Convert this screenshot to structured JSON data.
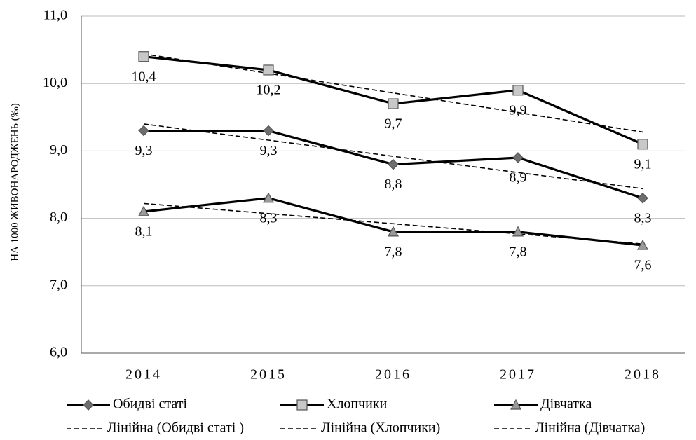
{
  "chart_data": {
    "type": "line",
    "ylabel": "НА 1000 ЖИВОНАРОДЖЕНЬ (‰)",
    "categories": [
      "2014",
      "2015",
      "2016",
      "2017",
      "2018"
    ],
    "ylim": [
      6,
      11
    ],
    "yticks": [
      {
        "value": 6,
        "label": "6,0"
      },
      {
        "value": 7,
        "label": "7,0"
      },
      {
        "value": 8,
        "label": "8,0"
      },
      {
        "value": 9,
        "label": "9,0"
      },
      {
        "value": 10,
        "label": "10,0"
      },
      {
        "value": 11,
        "label": "11,0"
      }
    ],
    "grid": true,
    "trendline": "linear",
    "series": [
      {
        "name": "Обидві статі",
        "trend_name": "Лінійна (Обидві статі )",
        "color": "#000000",
        "marker": "diamond",
        "marker_fill": "#6e6e6e",
        "values": [
          9.3,
          9.3,
          8.8,
          8.9,
          8.3
        ],
        "value_labels": [
          "9,3",
          "9,3",
          "8,8",
          "8,9",
          "8,3"
        ]
      },
      {
        "name": "Хлопчики",
        "trend_name": "Лінійна (Хлопчики)",
        "color": "#000000",
        "marker": "square",
        "marker_fill": "#c8c8c8",
        "values": [
          10.4,
          10.2,
          9.7,
          9.9,
          9.1
        ],
        "value_labels": [
          "10,4",
          "10,2",
          "9,7",
          "9,9",
          "9,1"
        ]
      },
      {
        "name": "Дівчатка",
        "trend_name": "Лінійна (Дівчатка)",
        "color": "#000000",
        "marker": "triangle",
        "marker_fill": "#9a9a9a",
        "values": [
          8.1,
          8.3,
          7.8,
          7.8,
          7.6
        ],
        "value_labels": [
          "8,1",
          "8,3",
          "7,8",
          "7,8",
          "7,6"
        ]
      }
    ]
  }
}
